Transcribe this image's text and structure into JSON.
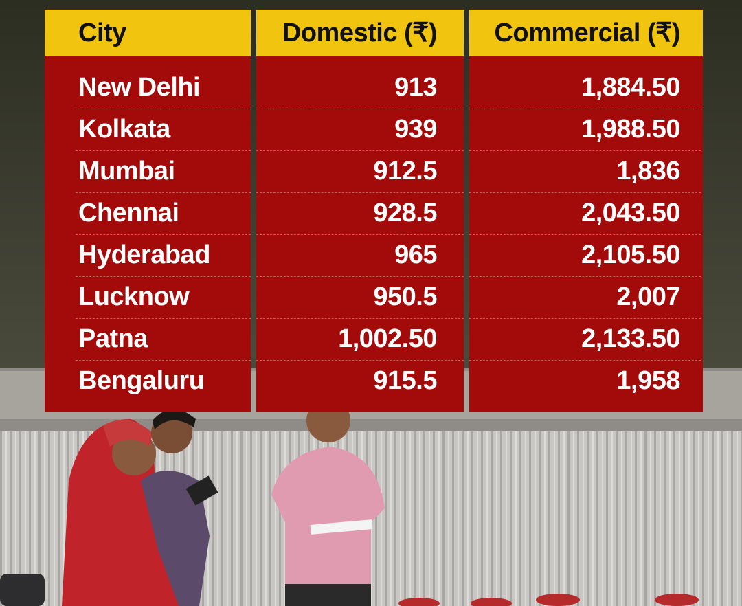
{
  "table": {
    "header": [
      "City",
      "Domestic (₹)",
      "Commercial (₹)"
    ],
    "rows": [
      [
        "New Delhi",
        "913",
        "1,884.50"
      ],
      [
        "Kolkata",
        "939",
        "1,988.50"
      ],
      [
        "Mumbai",
        "912.5",
        "1,836"
      ],
      [
        "Chennai",
        "928.5",
        "2,043.50"
      ],
      [
        "Hyderabad",
        "965",
        "2,105.50"
      ],
      [
        "Lucknow",
        "950.5",
        "2,007"
      ],
      [
        "Patna",
        "1,002.50",
        "2,133.50"
      ],
      [
        "Bengaluru",
        "915.5",
        "1,958"
      ]
    ]
  }
}
